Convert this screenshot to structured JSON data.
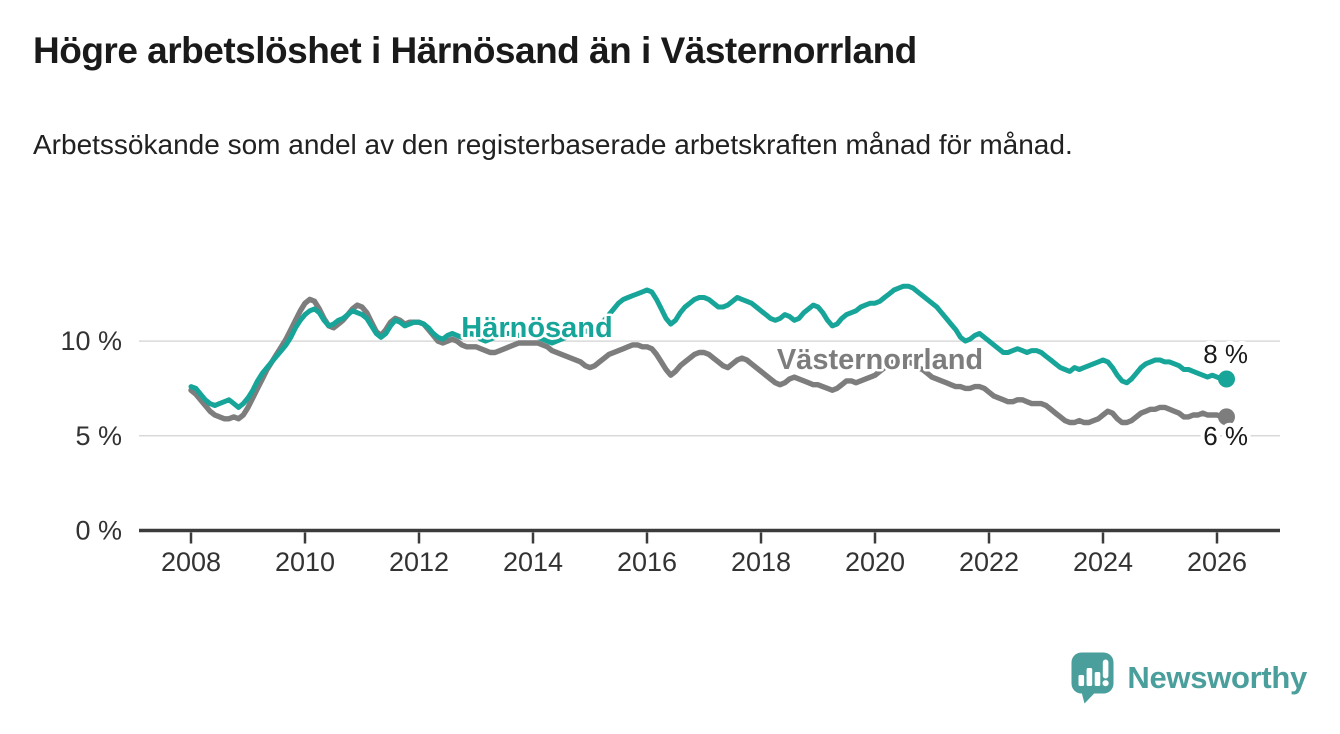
{
  "header": {
    "title": "Högre arbetslöshet i Härnösand än i Västernorrland",
    "subtitle": "Arbetssökande som andel av den registerbaserade arbetskraften månad för månad."
  },
  "chart_data": {
    "type": "line",
    "unit": "%",
    "frequency": "monthly",
    "x_start": "2008-01",
    "x_end": "2026-03",
    "ylim": [
      0,
      13.5
    ],
    "grid": "horizontal",
    "legend_position": "inline-labels",
    "axis_color": "#3b3b3b",
    "gridline_color": "#d9d9d9",
    "tick_text_color": "#333333",
    "yticks": [
      {
        "value": 0,
        "label": "0 %"
      },
      {
        "value": 5,
        "label": "5 %"
      },
      {
        "value": 10,
        "label": "10 %"
      }
    ],
    "xticks": [
      {
        "year": 2008,
        "label": "2008"
      },
      {
        "year": 2010,
        "label": "2010"
      },
      {
        "year": 2012,
        "label": "2012"
      },
      {
        "year": 2014,
        "label": "2014"
      },
      {
        "year": 2016,
        "label": "2016"
      },
      {
        "year": 2018,
        "label": "2018"
      },
      {
        "year": 2020,
        "label": "2020"
      },
      {
        "year": 2022,
        "label": "2022"
      },
      {
        "year": 2024,
        "label": "2024"
      },
      {
        "year": 2026,
        "label": "2026"
      }
    ],
    "series": [
      {
        "name": "Västernorrland",
        "color": "#7d7d7d",
        "end_label": "6 %",
        "end_value": 6.0,
        "values": [
          7.4,
          7.2,
          6.9,
          6.6,
          6.3,
          6.1,
          6.0,
          5.9,
          5.9,
          6.0,
          5.9,
          6.1,
          6.5,
          7.0,
          7.5,
          8.0,
          8.5,
          8.9,
          9.3,
          9.7,
          10.1,
          10.6,
          11.1,
          11.6,
          12.0,
          12.2,
          12.1,
          11.7,
          11.2,
          10.8,
          10.7,
          10.9,
          11.1,
          11.4,
          11.7,
          11.9,
          11.8,
          11.5,
          11.0,
          10.5,
          10.3,
          10.6,
          11.0,
          11.2,
          11.1,
          10.9,
          11.0,
          11.0,
          11.0,
          10.9,
          10.6,
          10.3,
          10.0,
          9.9,
          10.0,
          10.1,
          10.0,
          9.8,
          9.7,
          9.7,
          9.7,
          9.6,
          9.5,
          9.4,
          9.4,
          9.5,
          9.6,
          9.7,
          9.8,
          9.9,
          9.9,
          9.9,
          9.9,
          9.9,
          9.8,
          9.7,
          9.5,
          9.4,
          9.3,
          9.2,
          9.1,
          9.0,
          8.9,
          8.7,
          8.6,
          8.7,
          8.9,
          9.1,
          9.3,
          9.4,
          9.5,
          9.6,
          9.7,
          9.8,
          9.8,
          9.7,
          9.7,
          9.6,
          9.3,
          8.9,
          8.5,
          8.2,
          8.4,
          8.7,
          8.9,
          9.1,
          9.3,
          9.4,
          9.4,
          9.3,
          9.1,
          8.9,
          8.7,
          8.6,
          8.8,
          9.0,
          9.1,
          9.0,
          8.8,
          8.6,
          8.4,
          8.2,
          8.0,
          7.8,
          7.7,
          7.8,
          8.0,
          8.1,
          8.0,
          7.9,
          7.8,
          7.7,
          7.7,
          7.6,
          7.5,
          7.4,
          7.5,
          7.7,
          7.9,
          7.9,
          7.8,
          7.9,
          8.0,
          8.1,
          8.2,
          8.4,
          8.6,
          8.8,
          8.9,
          9.0,
          9.0,
          8.9,
          8.8,
          8.6,
          8.5,
          8.3,
          8.1,
          8.0,
          7.9,
          7.8,
          7.7,
          7.6,
          7.6,
          7.5,
          7.5,
          7.6,
          7.6,
          7.5,
          7.3,
          7.1,
          7.0,
          6.9,
          6.8,
          6.8,
          6.9,
          6.9,
          6.8,
          6.7,
          6.7,
          6.7,
          6.6,
          6.4,
          6.2,
          6.0,
          5.8,
          5.7,
          5.7,
          5.8,
          5.7,
          5.7,
          5.8,
          5.9,
          6.1,
          6.3,
          6.2,
          5.9,
          5.7,
          5.7,
          5.8,
          6.0,
          6.2,
          6.3,
          6.4,
          6.4,
          6.5,
          6.5,
          6.4,
          6.3,
          6.2,
          6.0,
          6.0,
          6.1,
          6.1,
          6.2,
          6.1,
          6.1,
          6.1,
          6.0,
          6.0
        ]
      },
      {
        "name": "Härnösand",
        "color": "#17a59a",
        "end_label": "8 %",
        "end_value": 8.0,
        "values": [
          7.6,
          7.5,
          7.2,
          6.9,
          6.7,
          6.6,
          6.7,
          6.8,
          6.9,
          6.7,
          6.5,
          6.7,
          7.0,
          7.4,
          7.9,
          8.3,
          8.6,
          8.9,
          9.2,
          9.5,
          9.8,
          10.2,
          10.7,
          11.1,
          11.4,
          11.6,
          11.7,
          11.5,
          11.1,
          10.8,
          10.9,
          11.1,
          11.2,
          11.4,
          11.6,
          11.5,
          11.4,
          11.2,
          10.8,
          10.4,
          10.2,
          10.4,
          10.8,
          11.1,
          11.0,
          10.8,
          10.9,
          11.0,
          11.0,
          10.9,
          10.7,
          10.4,
          10.2,
          10.1,
          10.3,
          10.4,
          10.3,
          10.2,
          10.3,
          10.4,
          10.3,
          10.1,
          10.0,
          10.1,
          10.2,
          10.3,
          10.4,
          10.4,
          10.3,
          10.3,
          10.4,
          10.4,
          10.3,
          10.2,
          10.1,
          10.0,
          9.9,
          10.0,
          10.1,
          10.2,
          10.3,
          10.4,
          10.5,
          10.5,
          10.6,
          10.7,
          10.9,
          11.1,
          11.4,
          11.7,
          12.0,
          12.2,
          12.3,
          12.4,
          12.5,
          12.6,
          12.7,
          12.6,
          12.2,
          11.7,
          11.2,
          10.9,
          11.1,
          11.5,
          11.8,
          12.0,
          12.2,
          12.3,
          12.3,
          12.2,
          12.0,
          11.8,
          11.8,
          11.9,
          12.1,
          12.3,
          12.2,
          12.1,
          12.0,
          11.8,
          11.6,
          11.4,
          11.2,
          11.1,
          11.2,
          11.4,
          11.3,
          11.1,
          11.2,
          11.5,
          11.7,
          11.9,
          11.8,
          11.5,
          11.1,
          10.8,
          10.9,
          11.2,
          11.4,
          11.5,
          11.6,
          11.8,
          11.9,
          12.0,
          12.0,
          12.1,
          12.3,
          12.5,
          12.7,
          12.8,
          12.9,
          12.9,
          12.8,
          12.6,
          12.4,
          12.2,
          12.0,
          11.8,
          11.5,
          11.2,
          10.9,
          10.6,
          10.2,
          10.0,
          10.1,
          10.3,
          10.4,
          10.2,
          10.0,
          9.8,
          9.6,
          9.4,
          9.4,
          9.5,
          9.6,
          9.5,
          9.4,
          9.5,
          9.5,
          9.4,
          9.2,
          9.0,
          8.8,
          8.6,
          8.5,
          8.4,
          8.6,
          8.5,
          8.6,
          8.7,
          8.8,
          8.9,
          9.0,
          8.9,
          8.6,
          8.2,
          7.9,
          7.8,
          8.0,
          8.3,
          8.6,
          8.8,
          8.9,
          9.0,
          9.0,
          8.9,
          8.9,
          8.8,
          8.7,
          8.5,
          8.5,
          8.4,
          8.3,
          8.2,
          8.1,
          8.2,
          8.1,
          8.0,
          8.0
        ]
      }
    ]
  },
  "footer": {
    "brand": "Newsworthy",
    "logo_icon": "bar-chart-speech-bubble",
    "logo_color": "#4a9e9b"
  }
}
